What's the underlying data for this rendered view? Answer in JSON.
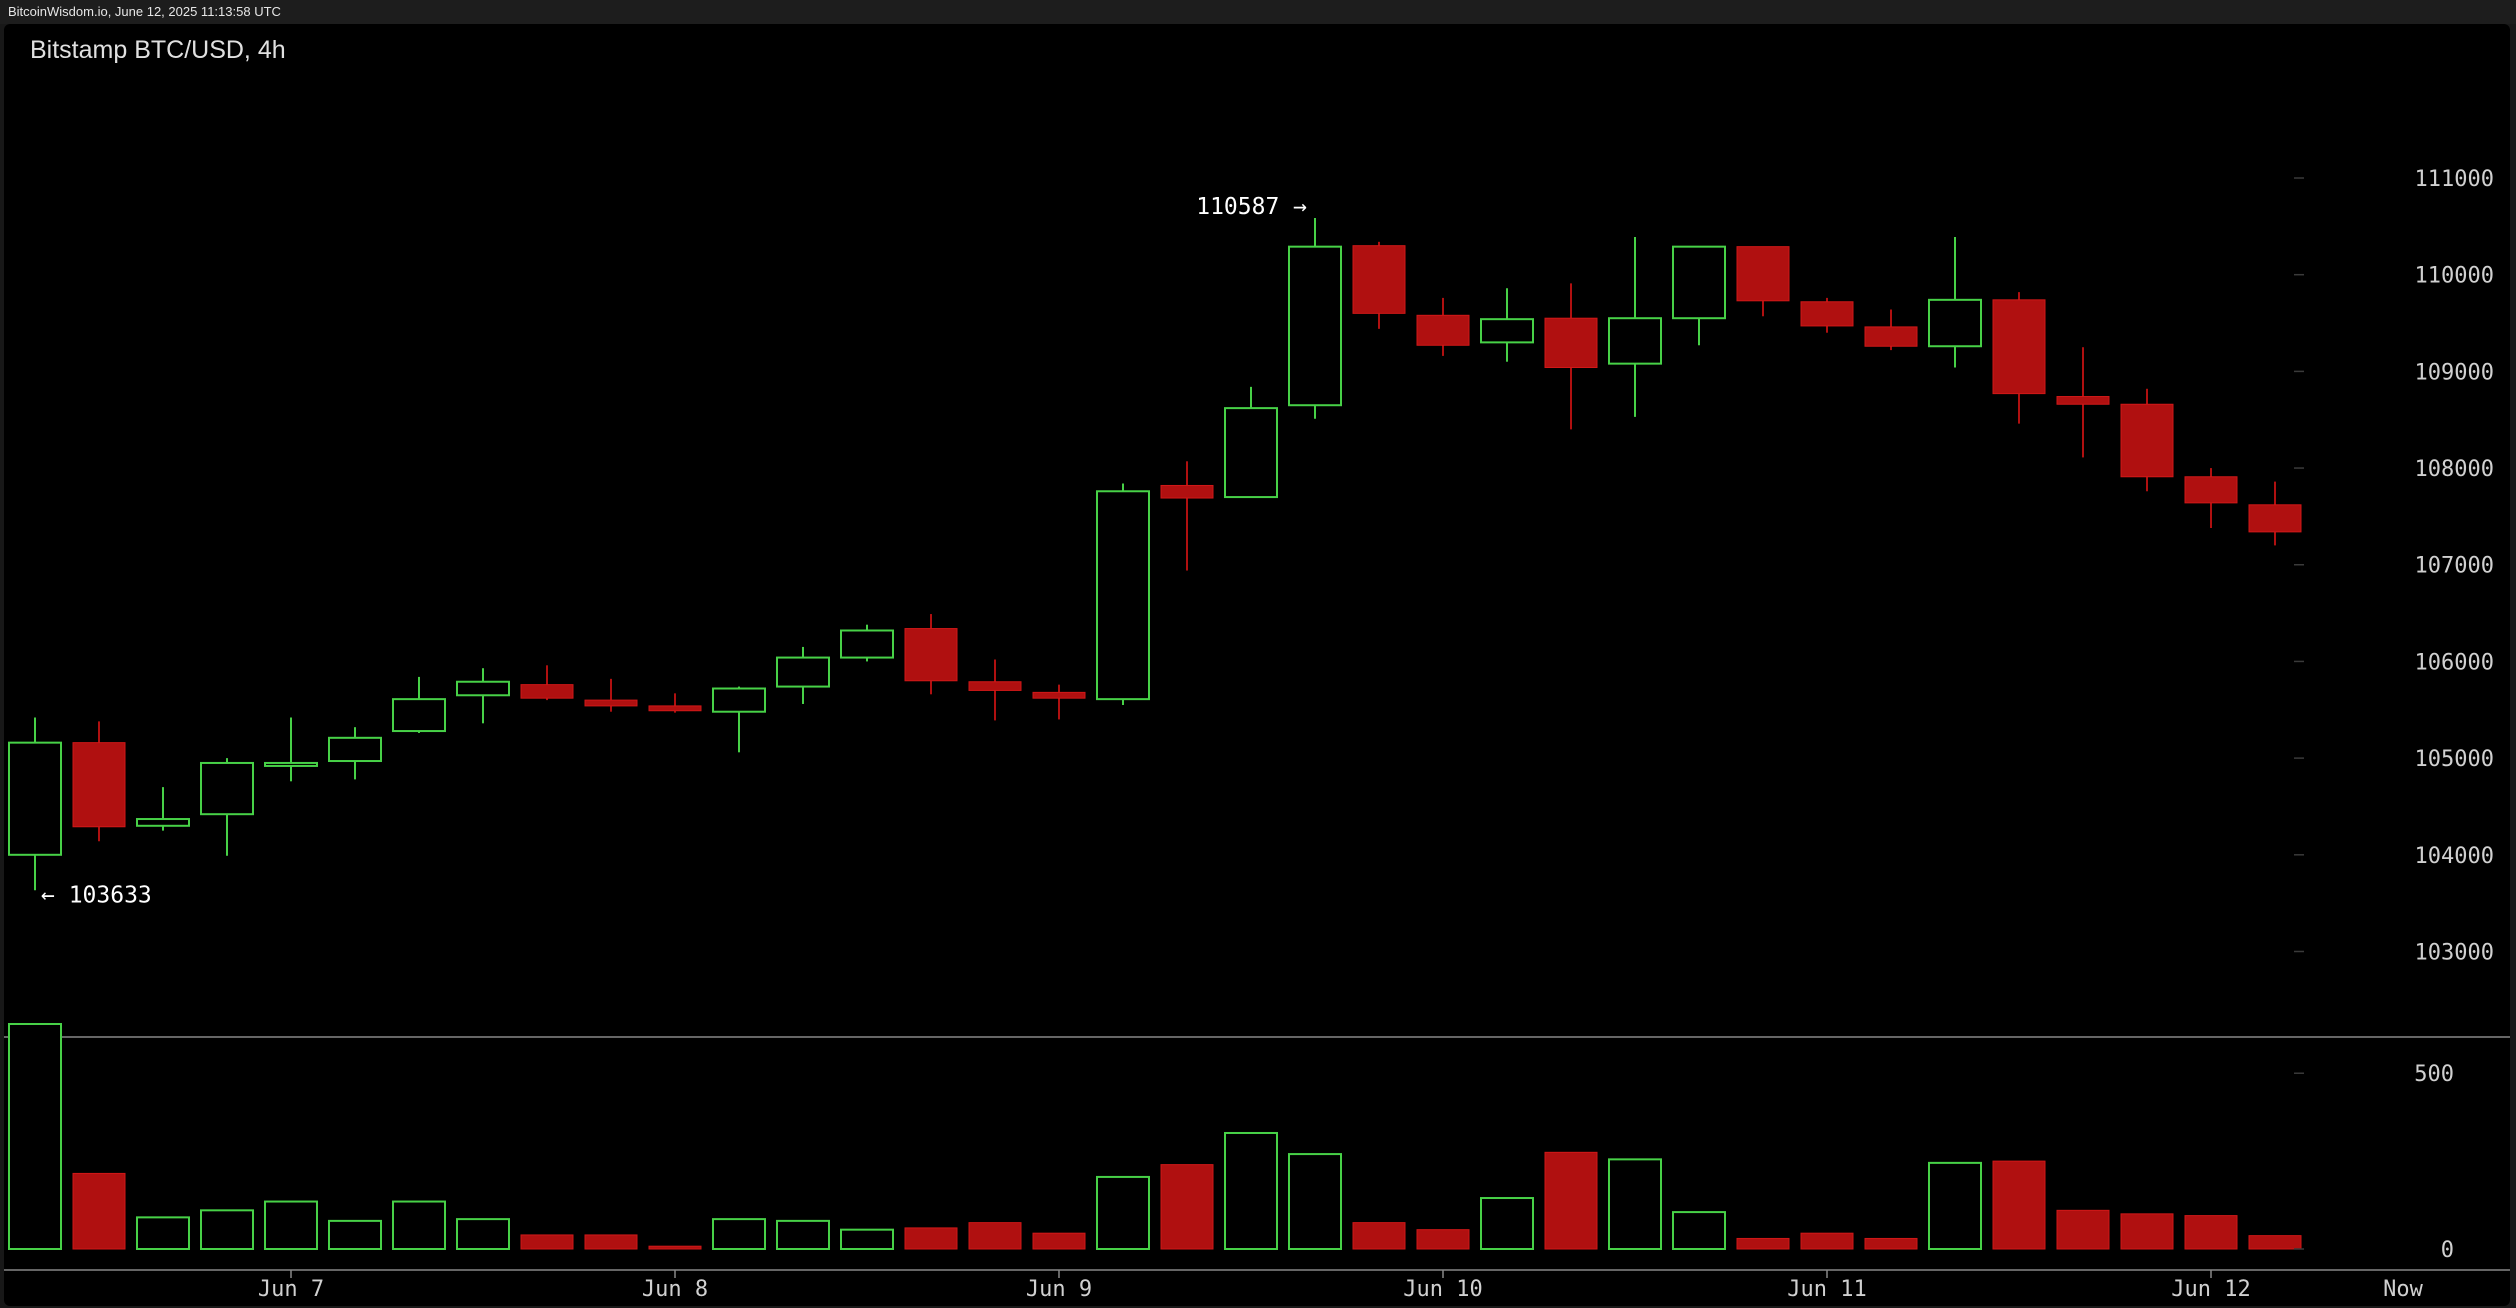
{
  "header": {
    "meta": "BitcoinWisdom.io, June 12, 2025 11:13:58 UTC"
  },
  "colors": {
    "up": "#47d147",
    "down": "#b01010",
    "grid": "#3a3a3a",
    "axis_text": "#d0d0d0",
    "background": "#000000"
  },
  "chart_data": {
    "type": "candlestick",
    "title": "Bitstamp BTC/USD, 4h",
    "price_axis": {
      "ticks": [
        103000,
        104000,
        105000,
        106000,
        107000,
        108000,
        109000,
        110000,
        111000
      ],
      "range": [
        102250,
        111600
      ]
    },
    "volume_axis": {
      "ticks": [
        0,
        500
      ],
      "range": [
        0,
        640
      ]
    },
    "x_labels": [
      {
        "label": "Jun 7",
        "index": 4
      },
      {
        "label": "Jun 8",
        "index": 10
      },
      {
        "label": "Jun 9",
        "index": 16
      },
      {
        "label": "Jun 10",
        "index": 22
      },
      {
        "label": "Jun 11",
        "index": 28
      },
      {
        "label": "Jun 12",
        "index": 34
      },
      {
        "label": "Now",
        "index": 37
      }
    ],
    "annotations": {
      "high": {
        "label": "110587 →",
        "value": 110587,
        "index": 20
      },
      "low": {
        "label": "← 103633",
        "value": 103633,
        "index": 0
      }
    },
    "candles": [
      {
        "open": 104000,
        "high": 105420,
        "low": 103633,
        "close": 105160,
        "volume": 640
      },
      {
        "open": 105160,
        "high": 105380,
        "low": 104140,
        "close": 104290,
        "volume": 215
      },
      {
        "open": 104300,
        "high": 104700,
        "low": 104250,
        "close": 104370,
        "volume": 90
      },
      {
        "open": 104420,
        "high": 105000,
        "low": 103990,
        "close": 104950,
        "volume": 110
      },
      {
        "open": 104950,
        "high": 105420,
        "low": 104760,
        "close": 104950,
        "volume": 135
      },
      {
        "open": 104970,
        "high": 105320,
        "low": 104780,
        "close": 105210,
        "volume": 80
      },
      {
        "open": 105280,
        "high": 105840,
        "low": 105260,
        "close": 105610,
        "volume": 135
      },
      {
        "open": 105650,
        "high": 105930,
        "low": 105360,
        "close": 105790,
        "volume": 85
      },
      {
        "open": 105760,
        "high": 105960,
        "low": 105600,
        "close": 105620,
        "volume": 40
      },
      {
        "open": 105600,
        "high": 105820,
        "low": 105480,
        "close": 105540,
        "volume": 40
      },
      {
        "open": 105540,
        "high": 105670,
        "low": 105470,
        "close": 105490,
        "volume": 8
      },
      {
        "open": 105480,
        "high": 105740,
        "low": 105060,
        "close": 105720,
        "volume": 85
      },
      {
        "open": 105740,
        "high": 106150,
        "low": 105560,
        "close": 106040,
        "volume": 80
      },
      {
        "open": 106040,
        "high": 106380,
        "low": 106000,
        "close": 106320,
        "volume": 55
      },
      {
        "open": 106340,
        "high": 106490,
        "low": 105660,
        "close": 105800,
        "volume": 60
      },
      {
        "open": 105790,
        "high": 106020,
        "low": 105390,
        "close": 105700,
        "volume": 75
      },
      {
        "open": 105680,
        "high": 105760,
        "low": 105400,
        "close": 105620,
        "volume": 45
      },
      {
        "open": 105610,
        "high": 107840,
        "low": 105550,
        "close": 107760,
        "volume": 205
      },
      {
        "open": 107820,
        "high": 108070,
        "low": 106940,
        "close": 107690,
        "volume": 240
      },
      {
        "open": 107700,
        "high": 108840,
        "low": 107700,
        "close": 108620,
        "volume": 330
      },
      {
        "open": 108650,
        "high": 110587,
        "low": 108510,
        "close": 110290,
        "volume": 270
      },
      {
        "open": 110300,
        "high": 110340,
        "low": 109440,
        "close": 109600,
        "volume": 75
      },
      {
        "open": 109580,
        "high": 109760,
        "low": 109160,
        "close": 109270,
        "volume": 55
      },
      {
        "open": 109300,
        "high": 109860,
        "low": 109100,
        "close": 109540,
        "volume": 145
      },
      {
        "open": 109550,
        "high": 109910,
        "low": 108400,
        "close": 109040,
        "volume": 275
      },
      {
        "open": 109080,
        "high": 110390,
        "low": 108530,
        "close": 109550,
        "volume": 255
      },
      {
        "open": 109550,
        "high": 110290,
        "low": 109270,
        "close": 110290,
        "volume": 105
      },
      {
        "open": 110290,
        "high": 110290,
        "low": 109570,
        "close": 109730,
        "volume": 30
      },
      {
        "open": 109720,
        "high": 109760,
        "low": 109400,
        "close": 109470,
        "volume": 45
      },
      {
        "open": 109460,
        "high": 109640,
        "low": 109220,
        "close": 109260,
        "volume": 30
      },
      {
        "open": 109260,
        "high": 110390,
        "low": 109040,
        "close": 109740,
        "volume": 245
      },
      {
        "open": 109740,
        "high": 109820,
        "low": 108460,
        "close": 108770,
        "volume": 250
      },
      {
        "open": 108740,
        "high": 109250,
        "low": 108110,
        "close": 108660,
        "volume": 110
      },
      {
        "open": 108660,
        "high": 108820,
        "low": 107760,
        "close": 107910,
        "volume": 100
      },
      {
        "open": 107910,
        "high": 108000,
        "low": 107380,
        "close": 107640,
        "volume": 95
      },
      {
        "open": 107620,
        "high": 107860,
        "low": 107200,
        "close": 107340,
        "volume": 38
      }
    ]
  }
}
